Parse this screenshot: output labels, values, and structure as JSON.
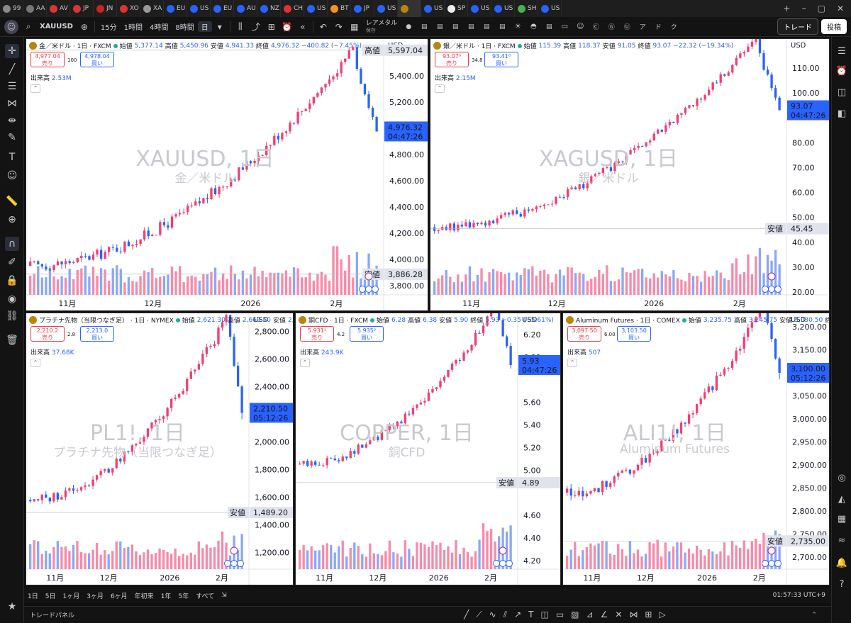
{
  "browser_tabs": [
    {
      "label": "99",
      "color": "#888"
    },
    {
      "label": "AA",
      "color": "#777"
    },
    {
      "label": "AV",
      "color": "#d33"
    },
    {
      "label": "JP",
      "color": "#d33"
    },
    {
      "label": "JN",
      "color": "#c22"
    },
    {
      "label": "XO",
      "color": "#d33"
    },
    {
      "label": "XA",
      "color": "#999"
    },
    {
      "label": "EU",
      "color": "#2962ff"
    },
    {
      "label": "US",
      "color": "#2962ff"
    },
    {
      "label": "EU",
      "color": "#2962ff"
    },
    {
      "label": "AU",
      "color": "#2962ff"
    },
    {
      "label": "NZ",
      "color": "#2962ff"
    },
    {
      "label": "CH",
      "color": "#d33"
    },
    {
      "label": "US",
      "color": "#2962ff"
    },
    {
      "label": "BT",
      "color": "#f7931a"
    },
    {
      "label": "JP",
      "color": "#2962ff"
    },
    {
      "label": "US",
      "color": "#2962ff"
    },
    {
      "label": "",
      "color": "#b8860b"
    },
    {
      "label": "US",
      "color": "#2962ff"
    },
    {
      "label": "SP",
      "color": "#eee"
    },
    {
      "label": "US",
      "color": "#2962ff"
    },
    {
      "label": "US",
      "color": "#2962ff"
    },
    {
      "label": "SH",
      "color": "#4caf50"
    },
    {
      "label": "US",
      "color": "#2962ff"
    }
  ],
  "toolbar": {
    "symbol": "XAUUSD",
    "intervals": [
      "15分",
      "1時間",
      "4時間",
      "8時間",
      "日"
    ],
    "active_interval": "日",
    "layout_name": "レアメタル",
    "layout_sub": "保存",
    "trade_label": "トレード",
    "publish_label": "投稿"
  },
  "panels": [
    {
      "id": "xau",
      "title": "金／米ドル · 1日 · FXCM",
      "ohlc": {
        "o": "5,377.14",
        "h": "5,450.96",
        "l": "4,941.33",
        "c": "4,976.32",
        "chg": "−400.82 (−7.45%)"
      },
      "sell": {
        "price": "4,977.04",
        "label": "売り"
      },
      "spread": "100",
      "buy": {
        "price": "4,978.04",
        "label": "買い"
      },
      "volume": "2.53M",
      "watermark": "XAUUSD, 1日",
      "watermark_sub": "金／米ドル",
      "currency": "USD",
      "y_ticks": [
        "5,400.00",
        "5,200.00",
        "5,000.00",
        "4,800.00",
        "4,600.00",
        "4,400.00",
        "4,200.00",
        "4,000.00",
        "3,800.00"
      ],
      "x_ticks": [
        "11月",
        "12月",
        "2026",
        "2月"
      ],
      "high_label": "高値",
      "high_value": "5,597.04",
      "low_label": "安値",
      "low_value": "3,886.28",
      "last_price": "4,976.32",
      "countdown": "04:47:26",
      "chart_data": {
        "type": "candlestick",
        "start": 3950,
        "peak": 5597,
        "low": 3886,
        "last": 4976,
        "ylim": [
          3750,
          5650
        ]
      }
    },
    {
      "id": "xag",
      "title": "銀／米ドル · 1日 · FXCM",
      "ohlc": {
        "o": "115.39",
        "h": "118.37",
        "l": "91.05",
        "c": "93.07",
        "chg": "−22.32 (−19.34%)"
      },
      "sell": {
        "price": "93.07⁰",
        "label": "売り"
      },
      "spread": "34.8",
      "buy": {
        "price": "93.41⁸",
        "label": "買い"
      },
      "volume": "2.15M",
      "watermark": "XAGUSD, 1日",
      "watermark_sub": "銀／米ドル",
      "currency": "USD",
      "y_ticks": [
        "110.00",
        "100.00",
        "80.00",
        "70.00",
        "60.00",
        "50.00",
        "40.00",
        "30.00",
        "20.00"
      ],
      "x_ticks": [
        "11月",
        "12月",
        "2026",
        "2月"
      ],
      "low_label": "安値",
      "low_value": "45.45",
      "last_price": "93.07",
      "countdown": "04:47:26",
      "chart_data": {
        "type": "candlestick",
        "start": 46,
        "peak": 121,
        "low": 45.45,
        "last": 93.07,
        "ylim": [
          20,
          120
        ]
      }
    },
    {
      "id": "pl",
      "title": "プラチナ先物（当限つなぎ足） · 1日 · NYMEX",
      "ohlc": {
        "o": "2,621.30",
        "h": "2,669.50",
        "l": "2,129.40",
        "c": "2,210.50",
        "chg": "−407.80 (−15.57%)"
      },
      "sell": {
        "price": "2,210.2",
        "label": "売り"
      },
      "spread": "2.8",
      "buy": {
        "price": "2,213.0",
        "label": "買い"
      },
      "volume": "37.68K",
      "watermark": "PL1!, 1日",
      "watermark_sub": "プラチナ先物（当限つなぎ足）",
      "currency": "USD",
      "y_ticks": [
        "2,800.00",
        "2,600.00",
        "2,400.00",
        "2,000.00",
        "1,800.00",
        "1,600.00",
        "1,400.00",
        "1,200.00"
      ],
      "x_ticks": [
        "11月",
        "12月",
        "2026",
        "2月"
      ],
      "low_label": "安値",
      "low_value": "1,489.20",
      "last_price": "2,210.50",
      "countdown": "05:12:26",
      "chart_data": {
        "type": "candlestick",
        "start": 1580,
        "peak": 2900,
        "low": 1489,
        "last": 2210,
        "ylim": [
          1100,
          2900
        ]
      }
    },
    {
      "id": "cu",
      "title": "銅CFD · 1日 · FXCM",
      "ohlc": {
        "o": "6.28",
        "h": "6.38",
        "l": "5.90",
        "c": "5.93",
        "chg": "−0.35 (−5.61%)"
      },
      "sell": {
        "price": "5.931¹",
        "label": "売り"
      },
      "spread": "4.2",
      "buy": {
        "price": "5.935³",
        "label": "買い"
      },
      "volume": "243.9K",
      "watermark": "COPPER, 1日",
      "watermark_sub": "銅CFD",
      "currency": "USD",
      "y_ticks": [
        "6.20",
        "6.00",
        "5.60",
        "5.40",
        "5.20",
        "5.00",
        "4.60",
        "4.40",
        "4.20"
      ],
      "x_ticks": [
        "11月",
        "12月",
        "2026",
        "2月"
      ],
      "low_label": "安値",
      "low_value": "4.89",
      "last_price": "5.93",
      "countdown": "04:47:26",
      "chart_data": {
        "type": "candlestick",
        "start": 5.05,
        "peak": 6.45,
        "low": 4.89,
        "last": 5.93,
        "ylim": [
          4.15,
          6.35
        ]
      }
    },
    {
      "id": "al",
      "title": "Aluminum Futures · 1日 · COMEX",
      "ohlc": {
        "o": "3,235.75",
        "h": "3,245.75",
        "l": "3,030.50",
        "c": "3,100.00",
        "chg": "−91.00 (−2.85%)"
      },
      "sell": {
        "price": "3,097.50",
        "label": "売り"
      },
      "spread": "6.00",
      "buy": {
        "price": "3,103.50",
        "label": "買い"
      },
      "volume": "507",
      "watermark": "ALI1!, 1日",
      "watermark_sub": "Aluminum Futures",
      "currency": "USD",
      "y_ticks": [
        "3,200.00",
        "3,150.00",
        "3,050.00",
        "3,000.00",
        "2,950.00",
        "2,900.00",
        "2,850.00",
        "2,800.00",
        "2,750.00",
        "2,700.00"
      ],
      "x_ticks": [
        "11月",
        "12月",
        "2026",
        "2月"
      ],
      "low_label": "安値",
      "low_value": "2,735.00",
      "last_price": "3,100.00",
      "countdown": "05:12:26",
      "chart_data": {
        "type": "candlestick",
        "start": 2840,
        "peak": 3250,
        "low": 2735,
        "last": 3100,
        "ylim": [
          2680,
          3220
        ]
      }
    }
  ],
  "bottom": {
    "ranges": [
      "1日",
      "5日",
      "1ヶ月",
      "3ヶ月",
      "6ヶ月",
      "年初来",
      "1年",
      "5年",
      "すべて"
    ],
    "clock": "01:57:33 UTC+9"
  },
  "trade_panel": {
    "label": "トレードパネル"
  },
  "colors": {
    "up": "#f23e72",
    "down": "#2962ff",
    "vol_up": "#f78aa8",
    "vol_down": "#8aa8f7"
  }
}
